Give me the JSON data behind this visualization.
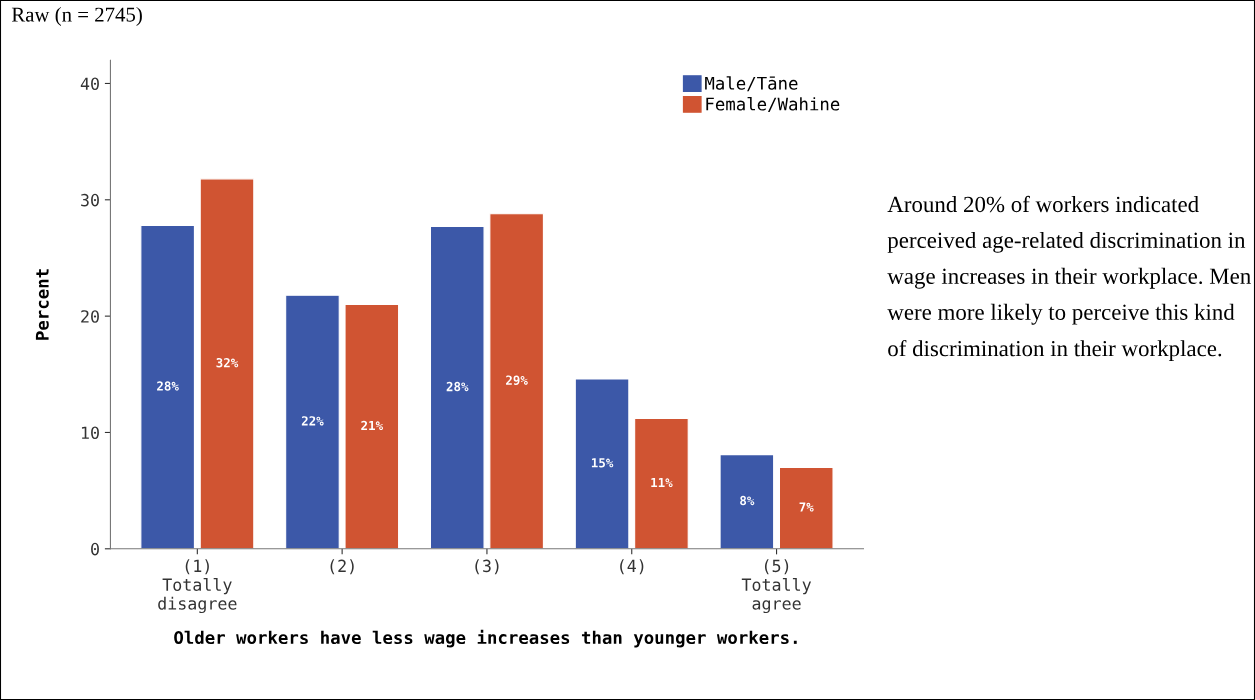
{
  "chart_data": {
    "type": "bar",
    "categories": [
      "(1)\nTotally\ndisagree",
      "(2)",
      "(3)",
      "(4)",
      "(5)\nTotally\nagree"
    ],
    "series": [
      {
        "name": "Male/Tāne",
        "color": "#3c58a8",
        "values": [
          27.8,
          21.8,
          27.7,
          14.6,
          8.1
        ],
        "value_labels": [
          "28%",
          "22%",
          "28%",
          "15%",
          "8%"
        ]
      },
      {
        "name": "Female/Wahine",
        "color": "#d05432",
        "values": [
          31.8,
          21.0,
          28.8,
          11.2,
          7.0
        ],
        "value_labels": [
          "32%",
          "21%",
          "29%",
          "11%",
          "7%"
        ]
      }
    ],
    "xlabel": "Older workers have less wage increases than younger workers.",
    "ylabel": "Percent",
    "ylim": [
      0,
      42
    ],
    "yticks": [
      0,
      10,
      20,
      30,
      40
    ],
    "grid": false,
    "legend": "top right",
    "annotations": [
      "Raw (n = 2745)",
      "Around 20% of workers indicated perceived age-related discrimination in wage increases in their workplace. Men were more likely to perceive this kind of discrimination in their workplace."
    ]
  }
}
